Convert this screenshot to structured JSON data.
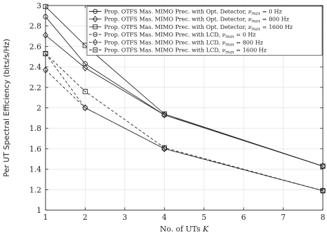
{
  "chart_data": {
    "type": "line",
    "x": [
      1,
      2,
      4,
      8
    ],
    "xlabel_prefix": "No. of UTs ",
    "xlabel_var": "K",
    "ylabel": "Per UT Spectral Efficiency (bits/s/Hz)",
    "xlim": [
      1,
      8
    ],
    "ylim": [
      1,
      3
    ],
    "xticks": [
      "1",
      "2",
      "3",
      "4",
      "5",
      "6",
      "7",
      "8"
    ],
    "yticks": [
      "1",
      "1.2",
      "1.4",
      "1.6",
      "1.8",
      "2",
      "2.2",
      "2.4",
      "2.6",
      "2.8",
      "3"
    ],
    "grid": true,
    "legend_position": "top-right",
    "series": [
      {
        "name_prefix": "Prop. OTFS Mas. MIMO Prec. with Opt. Detector, ",
        "nu": "ν",
        "nu_sub": "max",
        "name_suffix": " = 0 Hz",
        "values": [
          2.89,
          2.43,
          1.93,
          1.43
        ],
        "marker": "circle",
        "dash": "solid"
      },
      {
        "name_prefix": "Prop. OTFS Mas. MIMO Prec. with Opt. Detector, ",
        "nu": "ν",
        "nu_sub": "max",
        "name_suffix": " = 800 Hz",
        "values": [
          2.71,
          2.39,
          1.93,
          1.43
        ],
        "marker": "diamond",
        "dash": "solid"
      },
      {
        "name_prefix": "Prop. OTFS Mas. MIMO Prec. with Opt. Detector, ",
        "nu": "ν",
        "nu_sub": "max",
        "name_suffix": " = 1600 Hz",
        "values": [
          2.99,
          2.61,
          1.94,
          1.43
        ],
        "marker": "square",
        "dash": "solid"
      },
      {
        "name_prefix": "Prop. OTFS Mas. MIMO Prec. with LCD, ",
        "nu": "ν",
        "nu_sub": "max",
        "name_suffix": " = 0 Hz",
        "values": [
          2.53,
          2.0,
          1.6,
          1.19
        ],
        "marker": "circle",
        "dash": "dashed"
      },
      {
        "name_prefix": "Prop. OTFS Mas. MIMO Prec. with LCD, ",
        "nu": "ν",
        "nu_sub": "max",
        "name_suffix": " = 800 Hz",
        "values": [
          2.37,
          2.0,
          1.6,
          1.19
        ],
        "marker": "diamond",
        "dash": "dashed"
      },
      {
        "name_prefix": "Prop. OTFS Mas. MIMO Prec. with LCD, ",
        "nu": "ν",
        "nu_sub": "max",
        "name_suffix": " = 1600 Hz",
        "values": [
          2.53,
          2.16,
          1.61,
          1.19
        ],
        "marker": "square",
        "dash": "dashed"
      }
    ]
  }
}
